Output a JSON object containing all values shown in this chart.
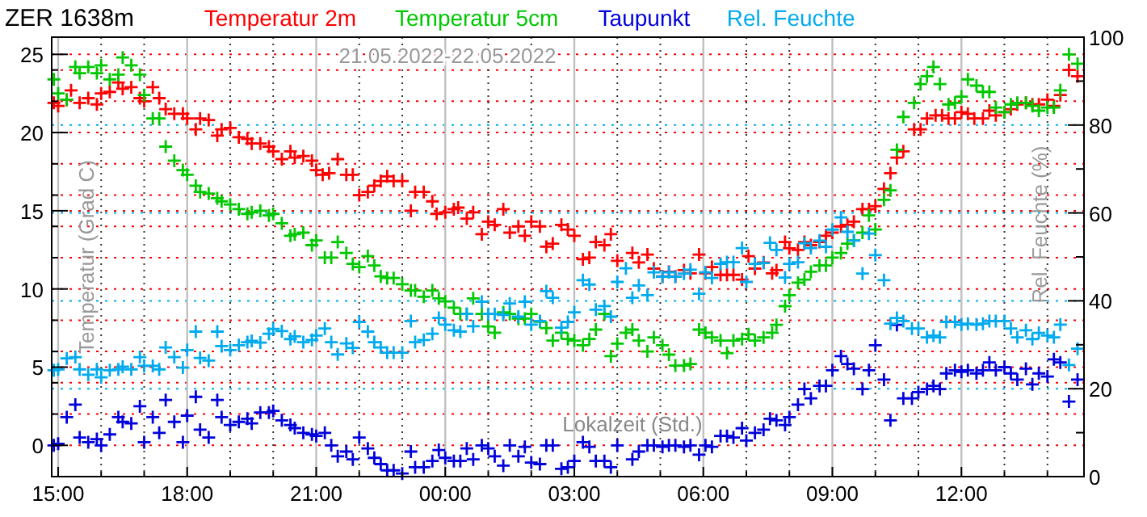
{
  "chart_data": {
    "type": "scatter",
    "title": "ZER 1638m",
    "subtitle": "21.05.2022-22.05.2022",
    "xlabel": "Lokalzeit (Std.)",
    "ylabel": "Temperatur (Grad C)",
    "y2label": "Rel. Feuchte (%)",
    "xlim": [
      "2022-05-21T14:51",
      "2022-05-22T14:51"
    ],
    "xticks": [
      {
        "value": "2022-05-21T15:00",
        "label": "15:00"
      },
      {
        "value": "2022-05-21T16:00",
        "label": null
      },
      {
        "value": "2022-05-21T17:00",
        "label": null
      },
      {
        "value": "2022-05-21T18:00",
        "label": "18:00"
      },
      {
        "value": "2022-05-21T19:00",
        "label": null
      },
      {
        "value": "2022-05-21T20:00",
        "label": null
      },
      {
        "value": "2022-05-21T21:00",
        "label": "21:00"
      },
      {
        "value": "2022-05-21T22:00",
        "label": null
      },
      {
        "value": "2022-05-21T23:00",
        "label": null
      },
      {
        "value": "2022-05-22T00:00",
        "label": "00:00"
      },
      {
        "value": "2022-05-22T01:00",
        "label": null
      },
      {
        "value": "2022-05-22T02:00",
        "label": null
      },
      {
        "value": "2022-05-22T03:00",
        "label": "03:00"
      },
      {
        "value": "2022-05-22T04:00",
        "label": null
      },
      {
        "value": "2022-05-22T05:00",
        "label": null
      },
      {
        "value": "2022-05-22T06:00",
        "label": "06:00"
      },
      {
        "value": "2022-05-22T07:00",
        "label": null
      },
      {
        "value": "2022-05-22T08:00",
        "label": null
      },
      {
        "value": "2022-05-22T09:00",
        "label": "09:00"
      },
      {
        "value": "2022-05-22T10:00",
        "label": null
      },
      {
        "value": "2022-05-22T11:00",
        "label": null
      },
      {
        "value": "2022-05-22T12:00",
        "label": "12:00"
      },
      {
        "value": "2022-05-22T13:00",
        "label": null
      },
      {
        "value": "2022-05-22T14:00",
        "label": null
      }
    ],
    "ylim": [
      -2.0,
      26.1
    ],
    "yticks": [
      0,
      {
        "value": 2,
        "label": null
      },
      {
        "value": 4,
        "label": null
      },
      5,
      {
        "value": 6,
        "label": null
      },
      {
        "value": 8,
        "label": null
      },
      10,
      {
        "value": 12,
        "label": null
      },
      {
        "value": 14,
        "label": null
      },
      15,
      {
        "value": 16,
        "label": null
      },
      {
        "value": 18,
        "label": null
      },
      20,
      {
        "value": 22,
        "label": null
      },
      {
        "value": 24,
        "label": null
      },
      25
    ],
    "y2lim": [
      0,
      100
    ],
    "y2ticks": [
      0,
      {
        "value": 10,
        "label": null
      },
      20,
      {
        "value": 30,
        "label": null
      },
      40,
      {
        "value": 50,
        "label": null
      },
      60,
      {
        "value": 70,
        "label": null
      },
      80,
      {
        "value": 90,
        "label": null
      },
      100
    ],
    "grid": true,
    "legend": "top",
    "marker": "cross",
    "series": [
      {
        "name": "Temperatur 2m",
        "color": "#ff0000",
        "x": [
          "2022-05-21T14:54",
          "2022-05-21T15:00",
          "2022-05-21T15:12",
          "2022-05-21T15:18",
          "2022-05-21T15:30",
          "2022-05-21T15:42",
          "2022-05-21T15:54",
          "2022-05-21T16:00",
          "2022-05-21T16:12",
          "2022-05-21T16:24",
          "2022-05-21T16:30",
          "2022-05-21T16:42",
          "2022-05-21T16:54",
          "2022-05-21T17:00",
          "2022-05-21T17:12",
          "2022-05-21T17:21",
          "2022-05-21T17:30",
          "2022-05-21T17:42",
          "2022-05-21T17:54",
          "2022-05-21T18:00",
          "2022-05-21T18:12",
          "2022-05-21T18:18",
          "2022-05-21T18:30",
          "2022-05-21T18:42",
          "2022-05-21T18:48",
          "2022-05-21T19:00",
          "2022-05-21T19:12",
          "2022-05-21T19:24",
          "2022-05-21T19:30",
          "2022-05-21T19:42",
          "2022-05-21T19:54",
          "2022-05-21T20:00",
          "2022-05-21T20:12",
          "2022-05-21T20:24",
          "2022-05-21T20:30",
          "2022-05-21T20:42",
          "2022-05-21T20:54",
          "2022-05-21T21:00",
          "2022-05-21T21:09",
          "2022-05-21T21:18",
          "2022-05-21T21:30",
          "2022-05-21T21:42",
          "2022-05-21T21:51",
          "2022-05-21T22:00",
          "2022-05-21T22:12",
          "2022-05-21T22:21",
          "2022-05-21T22:30",
          "2022-05-21T22:39",
          "2022-05-21T22:48",
          "2022-05-21T23:00",
          "2022-05-21T23:12",
          "2022-05-21T23:18",
          "2022-05-21T23:30",
          "2022-05-21T23:42",
          "2022-05-21T23:48",
          "2022-05-22T00:00",
          "2022-05-22T00:12",
          "2022-05-22T00:18",
          "2022-05-22T00:30",
          "2022-05-22T00:39",
          "2022-05-22T00:51",
          "2022-05-22T01:00",
          "2022-05-22T01:09",
          "2022-05-22T01:21",
          "2022-05-22T01:30",
          "2022-05-22T01:42",
          "2022-05-22T01:51",
          "2022-05-22T02:00",
          "2022-05-22T02:12",
          "2022-05-22T02:21",
          "2022-05-22T02:30",
          "2022-05-22T02:42",
          "2022-05-22T02:51",
          "2022-05-22T03:00",
          "2022-05-22T03:12",
          "2022-05-22T03:21",
          "2022-05-22T03:30",
          "2022-05-22T03:42",
          "2022-05-22T03:51",
          "2022-05-22T04:00",
          "2022-05-22T04:21",
          "2022-05-22T04:30",
          "2022-05-22T04:42",
          "2022-05-22T04:51",
          "2022-05-22T05:03",
          "2022-05-22T05:12",
          "2022-05-22T05:21",
          "2022-05-22T05:33",
          "2022-05-22T05:42",
          "2022-05-22T05:54",
          "2022-05-22T06:03",
          "2022-05-22T06:12",
          "2022-05-22T06:24",
          "2022-05-22T06:33",
          "2022-05-22T06:42",
          "2022-05-22T06:54",
          "2022-05-22T07:03",
          "2022-05-22T07:12",
          "2022-05-22T07:24",
          "2022-05-22T07:36",
          "2022-05-22T07:42",
          "2022-05-22T07:54",
          "2022-05-22T08:00",
          "2022-05-22T08:12",
          "2022-05-22T08:21",
          "2022-05-22T08:30",
          "2022-05-22T08:42",
          "2022-05-22T08:51",
          "2022-05-22T09:00",
          "2022-05-22T09:12",
          "2022-05-22T09:21",
          "2022-05-22T09:30",
          "2022-05-22T09:42",
          "2022-05-22T09:51",
          "2022-05-22T10:00",
          "2022-05-22T10:12",
          "2022-05-22T10:21",
          "2022-05-22T10:30",
          "2022-05-22T10:39",
          "2022-05-22T10:54",
          "2022-05-22T11:03",
          "2022-05-22T11:12",
          "2022-05-22T11:24",
          "2022-05-22T11:33",
          "2022-05-22T11:42",
          "2022-05-22T11:51",
          "2022-05-22T12:00",
          "2022-05-22T12:09",
          "2022-05-22T12:18",
          "2022-05-22T12:30",
          "2022-05-22T12:39",
          "2022-05-22T12:48",
          "2022-05-22T13:00",
          "2022-05-22T13:09",
          "2022-05-22T13:18",
          "2022-05-22T13:30",
          "2022-05-22T13:39",
          "2022-05-22T13:48",
          "2022-05-22T14:00",
          "2022-05-22T14:09",
          "2022-05-22T14:18",
          "2022-05-22T14:30",
          "2022-05-22T14:42"
        ],
        "values": [
          21.9,
          21.7,
          22.1,
          22.7,
          21.9,
          22.2,
          21.8,
          22.5,
          22.6,
          23.2,
          22.8,
          22.9,
          22.2,
          22.0,
          22.9,
          22.2,
          21.5,
          21.2,
          21.2,
          20.9,
          20.2,
          20.9,
          20.8,
          19.8,
          20.2,
          20.3,
          19.7,
          19.6,
          19.3,
          19.3,
          19.1,
          18.8,
          18.3,
          18.8,
          18.4,
          18.5,
          18.2,
          17.6,
          17.3,
          17.4,
          18.3,
          17.3,
          17.3,
          16.0,
          16.2,
          16.6,
          16.9,
          17.2,
          16.9,
          16.9,
          15.0,
          16.2,
          16.2,
          15.6,
          14.8,
          14.9,
          15.1,
          15.2,
          14.5,
          14.9,
          13.5,
          14.3,
          14.1,
          15.1,
          13.6,
          14.0,
          13.4,
          14.3,
          14.0,
          12.7,
          12.9,
          14.1,
          13.8,
          13.4,
          11.9,
          12.0,
          13.0,
          12.8,
          13.5,
          11.8,
          12.3,
          11.7,
          12.2,
          11.3,
          10.8,
          11.1,
          10.8,
          11.2,
          11.0,
          12.2,
          11.0,
          11.4,
          10.9,
          10.9,
          10.9,
          10.6,
          12.1,
          11.3,
          11.7,
          11.0,
          11.2,
          13.0,
          12.6,
          12.5,
          13.0,
          12.8,
          13.0,
          13.4,
          13.6,
          14.0,
          14.1,
          14.3,
          15.1,
          15.1,
          15.3,
          16.4,
          17.4,
          18.4,
          18.8,
          20.2,
          20.2,
          20.9,
          21.1,
          21.1,
          20.9,
          20.9,
          21.3,
          21.2,
          20.9,
          20.9,
          21.4,
          21.1,
          21.3,
          21.5,
          21.8,
          21.9,
          21.8,
          21.8,
          22.1,
          21.7,
          22.4,
          24.0,
          23.6
        ]
      },
      {
        "name": "Temperatur 5cm",
        "color": "#00c800",
        "x": [
          "2022-05-21T14:54",
          "2022-05-21T15:00",
          "2022-05-21T15:12",
          "2022-05-21T15:24",
          "2022-05-21T15:30",
          "2022-05-21T15:42",
          "2022-05-21T15:54",
          "2022-05-21T16:00",
          "2022-05-21T16:12",
          "2022-05-21T16:24",
          "2022-05-21T16:30",
          "2022-05-21T16:42",
          "2022-05-21T16:54",
          "2022-05-21T17:00",
          "2022-05-21T17:12",
          "2022-05-21T17:21",
          "2022-05-21T17:30",
          "2022-05-21T17:42",
          "2022-05-21T17:54",
          "2022-05-21T18:00",
          "2022-05-21T18:12",
          "2022-05-21T18:18",
          "2022-05-21T18:30",
          "2022-05-21T18:42",
          "2022-05-21T18:48",
          "2022-05-21T19:00",
          "2022-05-21T19:12",
          "2022-05-21T19:24",
          "2022-05-21T19:30",
          "2022-05-21T19:42",
          "2022-05-21T19:54",
          "2022-05-21T20:00",
          "2022-05-21T20:12",
          "2022-05-21T20:24",
          "2022-05-21T20:30",
          "2022-05-21T20:42",
          "2022-05-21T20:54",
          "2022-05-21T21:00",
          "2022-05-21T21:12",
          "2022-05-21T21:21",
          "2022-05-21T21:30",
          "2022-05-21T21:42",
          "2022-05-21T21:51",
          "2022-05-21T22:00",
          "2022-05-21T22:12",
          "2022-05-21T22:21",
          "2022-05-21T22:30",
          "2022-05-21T22:39",
          "2022-05-21T22:48",
          "2022-05-21T23:00",
          "2022-05-21T23:12",
          "2022-05-21T23:18",
          "2022-05-21T23:30",
          "2022-05-21T23:42",
          "2022-05-21T23:51",
          "2022-05-22T00:00",
          "2022-05-22T00:12",
          "2022-05-22T00:21",
          "2022-05-22T00:30",
          "2022-05-22T00:39",
          "2022-05-22T00:51",
          "2022-05-22T01:00",
          "2022-05-22T01:09",
          "2022-05-22T01:21",
          "2022-05-22T01:30",
          "2022-05-22T01:42",
          "2022-05-22T01:51",
          "2022-05-22T02:00",
          "2022-05-22T02:12",
          "2022-05-22T02:21",
          "2022-05-22T02:30",
          "2022-05-22T02:42",
          "2022-05-22T02:51",
          "2022-05-22T03:00",
          "2022-05-22T03:12",
          "2022-05-22T03:21",
          "2022-05-22T03:30",
          "2022-05-22T03:42",
          "2022-05-22T03:51",
          "2022-05-22T04:00",
          "2022-05-22T04:12",
          "2022-05-22T04:21",
          "2022-05-22T04:30",
          "2022-05-22T04:42",
          "2022-05-22T04:51",
          "2022-05-22T05:03",
          "2022-05-22T05:12",
          "2022-05-22T05:21",
          "2022-05-22T05:33",
          "2022-05-22T05:42",
          "2022-05-22T05:54",
          "2022-05-22T06:03",
          "2022-05-22T06:12",
          "2022-05-22T06:24",
          "2022-05-22T06:33",
          "2022-05-22T06:42",
          "2022-05-22T06:54",
          "2022-05-22T07:03",
          "2022-05-22T07:12",
          "2022-05-22T07:24",
          "2022-05-22T07:36",
          "2022-05-22T07:42",
          "2022-05-22T07:54",
          "2022-05-22T08:00",
          "2022-05-22T08:12",
          "2022-05-22T08:21",
          "2022-05-22T08:30",
          "2022-05-22T08:42",
          "2022-05-22T08:51",
          "2022-05-22T09:00",
          "2022-05-22T09:12",
          "2022-05-22T09:21",
          "2022-05-22T09:30",
          "2022-05-22T09:42",
          "2022-05-22T09:51",
          "2022-05-22T10:00",
          "2022-05-22T10:12",
          "2022-05-22T10:21",
          "2022-05-22T10:30",
          "2022-05-22T10:39",
          "2022-05-22T10:54",
          "2022-05-22T11:03",
          "2022-05-22T11:12",
          "2022-05-22T11:21",
          "2022-05-22T11:30",
          "2022-05-22T11:42",
          "2022-05-22T11:51",
          "2022-05-22T12:00",
          "2022-05-22T12:09",
          "2022-05-22T12:21",
          "2022-05-22T12:30",
          "2022-05-22T12:39",
          "2022-05-22T12:48",
          "2022-05-22T13:00",
          "2022-05-22T13:09",
          "2022-05-22T13:18",
          "2022-05-22T13:30",
          "2022-05-22T13:39",
          "2022-05-22T13:48",
          "2022-05-22T14:00",
          "2022-05-22T14:09",
          "2022-05-22T14:18",
          "2022-05-22T14:30",
          "2022-05-22T14:42"
        ],
        "values": [
          23.4,
          22.5,
          22.1,
          24.2,
          23.8,
          24.2,
          23.8,
          24.3,
          23.4,
          23.7,
          24.8,
          24.3,
          23.7,
          22.4,
          20.9,
          20.9,
          19.1,
          18.2,
          17.6,
          17.3,
          16.6,
          16.2,
          16.1,
          15.8,
          15.6,
          15.4,
          15.1,
          14.8,
          14.9,
          15.0,
          14.7,
          14.8,
          14.2,
          13.4,
          13.5,
          13.6,
          12.8,
          13.1,
          12.0,
          12.0,
          13.0,
          12.3,
          11.6,
          11.4,
          12.1,
          11.5,
          10.8,
          10.7,
          10.7,
          10.3,
          9.9,
          9.9,
          9.5,
          9.9,
          9.4,
          9.2,
          8.8,
          8.4,
          8.4,
          9.4,
          8.4,
          7.6,
          7.2,
          8.5,
          8.4,
          8.1,
          8.1,
          8.4,
          7.9,
          7.5,
          6.7,
          7.2,
          6.8,
          6.7,
          6.4,
          6.8,
          7.4,
          8.4,
          5.7,
          6.5,
          7.2,
          7.4,
          6.7,
          6.0,
          6.9,
          6.4,
          5.8,
          5.1,
          5.1,
          5.2,
          7.4,
          7.2,
          6.9,
          6.7,
          5.9,
          6.7,
          6.8,
          7.1,
          6.7,
          6.9,
          7.2,
          7.7,
          8.9,
          9.6,
          10.4,
          10.6,
          11.1,
          11.5,
          11.5,
          12.0,
          12.3,
          12.9,
          13.1,
          13.6,
          14.7,
          13.8,
          15.7,
          16.3,
          18.9,
          21.0,
          21.9,
          23.1,
          23.6,
          24.2,
          23.1,
          21.8,
          21.9,
          22.3,
          23.4,
          23.0,
          22.6,
          22.6,
          21.6,
          21.3,
          21.8,
          21.9,
          21.9,
          21.7,
          21.4,
          21.6,
          21.6,
          22.7,
          25.0,
          24.4
        ]
      },
      {
        "name": "Taupunkt",
        "color": "#0000dc",
        "x": [
          "2022-05-21T14:54",
          "2022-05-21T15:00",
          "2022-05-21T15:12",
          "2022-05-21T15:24",
          "2022-05-21T15:30",
          "2022-05-21T15:42",
          "2022-05-21T15:54",
          "2022-05-21T16:00",
          "2022-05-21T16:12",
          "2022-05-21T16:24",
          "2022-05-21T16:30",
          "2022-05-21T16:42",
          "2022-05-21T16:54",
          "2022-05-21T17:00",
          "2022-05-21T17:12",
          "2022-05-21T17:21",
          "2022-05-21T17:30",
          "2022-05-21T17:42",
          "2022-05-21T17:54",
          "2022-05-21T18:00",
          "2022-05-21T18:12",
          "2022-05-21T18:18",
          "2022-05-21T18:30",
          "2022-05-21T18:42",
          "2022-05-21T18:48",
          "2022-05-21T19:00",
          "2022-05-21T19:12",
          "2022-05-21T19:24",
          "2022-05-21T19:30",
          "2022-05-21T19:42",
          "2022-05-21T19:54",
          "2022-05-21T20:00",
          "2022-05-21T20:12",
          "2022-05-21T20:24",
          "2022-05-21T20:30",
          "2022-05-21T20:42",
          "2022-05-21T20:54",
          "2022-05-21T21:00",
          "2022-05-21T21:12",
          "2022-05-21T21:21",
          "2022-05-21T21:30",
          "2022-05-21T21:42",
          "2022-05-21T21:51",
          "2022-05-21T22:00",
          "2022-05-21T22:12",
          "2022-05-21T22:21",
          "2022-05-21T22:30",
          "2022-05-21T22:39",
          "2022-05-21T22:48",
          "2022-05-21T23:00",
          "2022-05-21T23:12",
          "2022-05-21T23:18",
          "2022-05-21T23:30",
          "2022-05-21T23:42",
          "2022-05-21T23:51",
          "2022-05-22T00:00",
          "2022-05-22T00:12",
          "2022-05-22T00:21",
          "2022-05-22T00:30",
          "2022-05-22T00:39",
          "2022-05-22T00:51",
          "2022-05-22T01:00",
          "2022-05-22T01:09",
          "2022-05-22T01:21",
          "2022-05-22T01:30",
          "2022-05-22T01:42",
          "2022-05-22T01:51",
          "2022-05-22T02:00",
          "2022-05-22T02:12",
          "2022-05-22T02:21",
          "2022-05-22T02:30",
          "2022-05-22T02:42",
          "2022-05-22T02:51",
          "2022-05-22T03:00",
          "2022-05-22T03:12",
          "2022-05-22T03:21",
          "2022-05-22T03:30",
          "2022-05-22T03:42",
          "2022-05-22T03:51",
          "2022-05-22T04:00",
          "2022-05-22T04:21",
          "2022-05-22T04:30",
          "2022-05-22T04:42",
          "2022-05-22T04:51",
          "2022-05-22T05:03",
          "2022-05-22T05:12",
          "2022-05-22T05:21",
          "2022-05-22T05:33",
          "2022-05-22T05:42",
          "2022-05-22T05:54",
          "2022-05-22T06:03",
          "2022-05-22T06:12",
          "2022-05-22T06:24",
          "2022-05-22T06:33",
          "2022-05-22T06:42",
          "2022-05-22T06:54",
          "2022-05-22T07:00",
          "2022-05-22T07:12",
          "2022-05-22T07:24",
          "2022-05-22T07:33",
          "2022-05-22T07:42",
          "2022-05-22T07:54",
          "2022-05-22T08:00",
          "2022-05-22T08:12",
          "2022-05-22T08:21",
          "2022-05-22T08:30",
          "2022-05-22T08:42",
          "2022-05-22T08:51",
          "2022-05-22T09:00",
          "2022-05-22T09:12",
          "2022-05-22T09:21",
          "2022-05-22T09:30",
          "2022-05-22T09:42",
          "2022-05-22T09:51",
          "2022-05-22T10:00",
          "2022-05-22T10:12",
          "2022-05-22T10:21",
          "2022-05-22T10:30",
          "2022-05-22T10:39",
          "2022-05-22T10:51",
          "2022-05-22T11:00",
          "2022-05-22T11:12",
          "2022-05-22T11:21",
          "2022-05-22T11:30",
          "2022-05-22T11:39",
          "2022-05-22T11:51",
          "2022-05-22T12:00",
          "2022-05-22T12:09",
          "2022-05-22T12:21",
          "2022-05-22T12:30",
          "2022-05-22T12:39",
          "2022-05-22T12:48",
          "2022-05-22T13:00",
          "2022-05-22T13:09",
          "2022-05-22T13:18",
          "2022-05-22T13:30",
          "2022-05-22T13:39",
          "2022-05-22T13:48",
          "2022-05-22T14:00",
          "2022-05-22T14:09",
          "2022-05-22T14:18",
          "2022-05-22T14:30",
          "2022-05-22T14:42"
        ],
        "values": [
          0.0,
          0.1,
          1.8,
          2.6,
          0.5,
          0.2,
          0.4,
          0.0,
          0.7,
          1.8,
          1.5,
          1.4,
          2.5,
          0.2,
          1.8,
          0.8,
          2.9,
          1.5,
          0.2,
          1.9,
          3.1,
          1.0,
          0.5,
          2.9,
          1.8,
          1.3,
          1.5,
          1.7,
          1.4,
          2.1,
          2.1,
          2.2,
          1.6,
          1.3,
          1.1,
          0.8,
          0.7,
          0.6,
          0.8,
          0.0,
          -0.7,
          -0.4,
          -0.9,
          0.5,
          -0.2,
          -0.8,
          -1.2,
          -1.6,
          -1.6,
          -1.8,
          -0.4,
          -1.4,
          -1.4,
          -1.0,
          -0.3,
          -0.8,
          -1.0,
          -1.0,
          -0.2,
          -0.9,
          0.0,
          -0.2,
          -0.7,
          -1.3,
          0.0,
          -0.7,
          -0.1,
          -1.1,
          -1.2,
          0.0,
          0.0,
          -1.5,
          -1.4,
          -1.0,
          0.2,
          -0.1,
          -1.0,
          -1.0,
          -1.4,
          0.0,
          -0.9,
          -0.4,
          0.0,
          0.0,
          -0.1,
          0.0,
          0.0,
          -0.1,
          0.0,
          -0.6,
          0.0,
          -0.1,
          0.6,
          0.6,
          0.5,
          1.1,
          0.3,
          0.8,
          1.0,
          1.7,
          1.6,
          1.3,
          1.8,
          2.6,
          3.6,
          3.0,
          3.8,
          3.8,
          4.8,
          5.7,
          5.2,
          4.9,
          3.6,
          4.8,
          6.4,
          4.2,
          1.6,
          7.7,
          3.0,
          3.0,
          3.4,
          3.6,
          3.8,
          3.6,
          4.6,
          4.8,
          4.7,
          4.8,
          4.6,
          4.8,
          5.3,
          4.8,
          5.0,
          4.6,
          4.2,
          4.9,
          3.9,
          4.6,
          4.4,
          5.5,
          5.3,
          2.8,
          4.2
        ]
      },
      {
        "name": "Rel. Feuchte",
        "color": "#00aaee",
        "axis": "y2",
        "x": [
          "2022-05-21T14:54",
          "2022-05-21T15:00",
          "2022-05-21T15:12",
          "2022-05-21T15:24",
          "2022-05-21T15:30",
          "2022-05-21T15:42",
          "2022-05-21T15:54",
          "2022-05-21T16:00",
          "2022-05-21T16:12",
          "2022-05-21T16:24",
          "2022-05-21T16:30",
          "2022-05-21T16:42",
          "2022-05-21T16:54",
          "2022-05-21T17:00",
          "2022-05-21T17:12",
          "2022-05-21T17:21",
          "2022-05-21T17:30",
          "2022-05-21T17:42",
          "2022-05-21T17:54",
          "2022-05-21T18:00",
          "2022-05-21T18:12",
          "2022-05-21T18:18",
          "2022-05-21T18:30",
          "2022-05-21T18:42",
          "2022-05-21T18:48",
          "2022-05-21T19:00",
          "2022-05-21T19:12",
          "2022-05-21T19:24",
          "2022-05-21T19:30",
          "2022-05-21T19:42",
          "2022-05-21T19:54",
          "2022-05-21T20:00",
          "2022-05-21T20:12",
          "2022-05-21T20:24",
          "2022-05-21T20:30",
          "2022-05-21T20:42",
          "2022-05-21T20:54",
          "2022-05-21T21:00",
          "2022-05-21T21:12",
          "2022-05-21T21:21",
          "2022-05-21T21:30",
          "2022-05-21T21:42",
          "2022-05-21T21:51",
          "2022-05-21T22:00",
          "2022-05-21T22:12",
          "2022-05-21T22:21",
          "2022-05-21T22:30",
          "2022-05-21T22:39",
          "2022-05-21T22:48",
          "2022-05-21T23:00",
          "2022-05-21T23:12",
          "2022-05-21T23:18",
          "2022-05-21T23:30",
          "2022-05-21T23:42",
          "2022-05-21T23:51",
          "2022-05-22T00:00",
          "2022-05-22T00:12",
          "2022-05-22T00:21",
          "2022-05-22T00:30",
          "2022-05-22T00:39",
          "2022-05-22T00:51",
          "2022-05-22T01:00",
          "2022-05-22T01:09",
          "2022-05-22T01:21",
          "2022-05-22T01:30",
          "2022-05-22T01:42",
          "2022-05-22T01:51",
          "2022-05-22T02:00",
          "2022-05-22T02:12",
          "2022-05-22T02:21",
          "2022-05-22T02:30",
          "2022-05-22T02:42",
          "2022-05-22T02:51",
          "2022-05-22T03:00",
          "2022-05-22T03:12",
          "2022-05-22T03:21",
          "2022-05-22T03:30",
          "2022-05-22T03:42",
          "2022-05-22T03:51",
          "2022-05-22T04:00",
          "2022-05-22T04:12",
          "2022-05-22T04:21",
          "2022-05-22T04:30",
          "2022-05-22T04:42",
          "2022-05-22T04:51",
          "2022-05-22T05:03",
          "2022-05-22T05:12",
          "2022-05-22T05:21",
          "2022-05-22T05:33",
          "2022-05-22T05:42",
          "2022-05-22T05:54",
          "2022-05-22T06:03",
          "2022-05-22T06:12",
          "2022-05-22T06:24",
          "2022-05-22T06:33",
          "2022-05-22T06:42",
          "2022-05-22T06:54",
          "2022-05-22T07:00",
          "2022-05-22T07:12",
          "2022-05-22T07:24",
          "2022-05-22T07:33",
          "2022-05-22T07:42",
          "2022-05-22T07:54",
          "2022-05-22T08:00",
          "2022-05-22T08:12",
          "2022-05-22T08:21",
          "2022-05-22T08:30",
          "2022-05-22T08:42",
          "2022-05-22T08:51",
          "2022-05-22T09:00",
          "2022-05-22T09:12",
          "2022-05-22T09:21",
          "2022-05-22T09:30",
          "2022-05-22T09:42",
          "2022-05-22T09:51",
          "2022-05-22T10:00",
          "2022-05-22T10:12",
          "2022-05-22T10:21",
          "2022-05-22T10:30",
          "2022-05-22T10:39",
          "2022-05-22T10:51",
          "2022-05-22T11:00",
          "2022-05-22T11:12",
          "2022-05-22T11:21",
          "2022-05-22T11:30",
          "2022-05-22T11:39",
          "2022-05-22T11:51",
          "2022-05-22T12:00",
          "2022-05-22T12:09",
          "2022-05-22T12:21",
          "2022-05-22T12:30",
          "2022-05-22T12:39",
          "2022-05-22T12:48",
          "2022-05-22T13:00",
          "2022-05-22T13:09",
          "2022-05-22T13:18",
          "2022-05-22T13:30",
          "2022-05-22T13:39",
          "2022-05-22T13:48",
          "2022-05-22T14:00",
          "2022-05-22T14:09",
          "2022-05-22T14:18",
          "2022-05-22T14:30",
          "2022-05-22T14:42"
        ],
        "values": [
          24.2,
          24.4,
          26.9,
          27.2,
          24.4,
          23.2,
          24.4,
          22.6,
          24.2,
          24.4,
          25.0,
          24.4,
          27.2,
          25.2,
          25.2,
          24.4,
          29.4,
          27.2,
          24.8,
          28.8,
          33.0,
          27.0,
          26.4,
          33.0,
          29.7,
          28.8,
          29.9,
          30.6,
          30.9,
          30.5,
          32.5,
          33.6,
          33.1,
          31.3,
          31.9,
          30.6,
          31.1,
          32.1,
          33.7,
          30.6,
          27.8,
          30.3,
          29.3,
          35.2,
          33.0,
          30.6,
          29.4,
          28.2,
          28.2,
          28.2,
          35.4,
          30.6,
          31.1,
          32.5,
          36.1,
          34.6,
          33.3,
          33.0,
          37.0,
          34.2,
          39.8,
          37.0,
          37.0,
          36.8,
          39.4,
          36.4,
          39.8,
          34.6,
          35.4,
          42.2,
          40.7,
          33.9,
          35.2,
          37.4,
          44.7,
          43.7,
          38.0,
          38.8,
          36.4,
          44.3,
          47.4,
          40.7,
          43.5,
          41.3,
          46.5,
          45.5,
          46.5,
          45.5,
          46.2,
          47.1,
          41.6,
          46.5,
          45.2,
          48.4,
          48.8,
          48.8,
          52.0,
          44.3,
          48.4,
          48.6,
          53.2,
          51.6,
          45.3,
          48.4,
          48.8,
          53.1,
          52.0,
          53.7,
          52.3,
          56.2,
          59.0,
          55.7,
          53.7,
          46.2,
          55.3,
          50.4,
          44.7,
          34.8,
          36.1,
          35.4,
          33.7,
          33.7,
          31.7,
          32.1,
          31.7,
          35.2,
          35.2,
          34.6,
          34.8,
          34.6,
          34.8,
          35.4,
          35.4,
          35.4,
          33.7,
          31.7,
          33.3,
          31.3,
          32.7,
          32.1,
          31.7,
          34.6,
          25.4,
          29.1
        ]
      }
    ]
  }
}
